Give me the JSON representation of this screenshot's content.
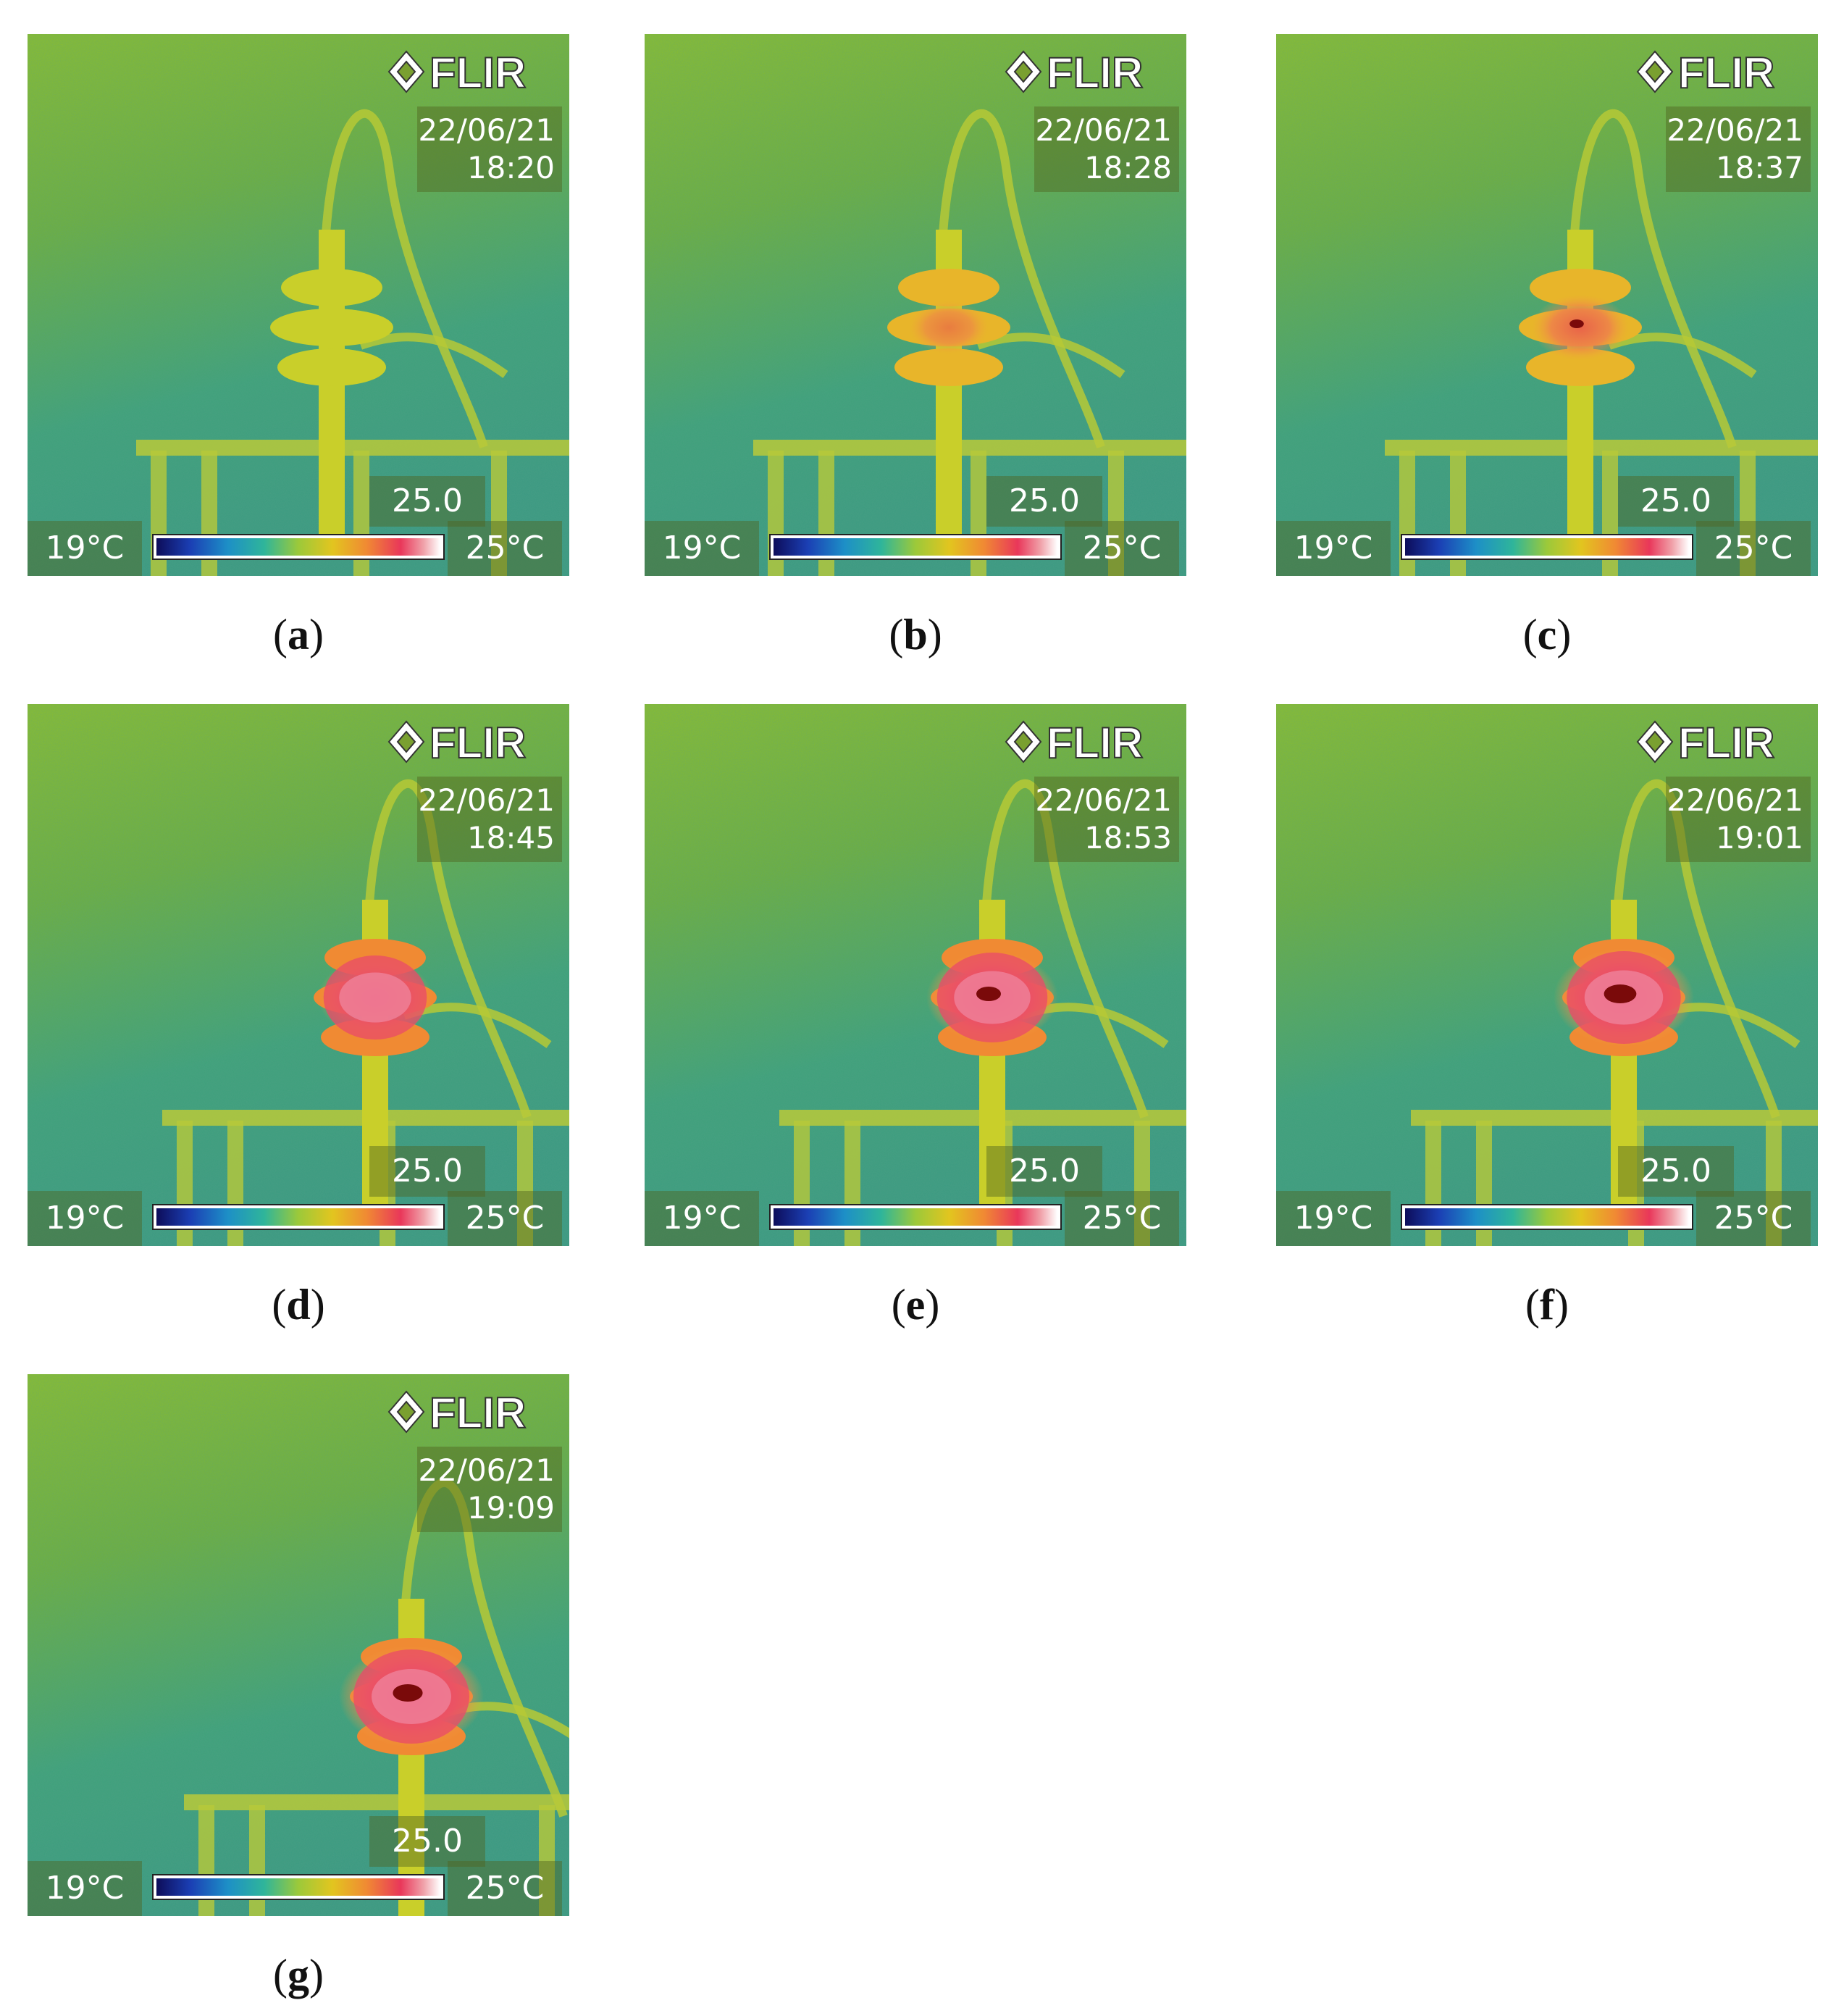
{
  "panels": [
    {
      "label": "a",
      "date": "22/06/21",
      "time": "18:20",
      "span": "25.0",
      "tmin": "19°C",
      "tmax": "25°C",
      "heat": 0.0,
      "hotspot": 0.0
    },
    {
      "label": "b",
      "date": "22/06/21",
      "time": "18:28",
      "span": "25.0",
      "tmin": "19°C",
      "tmax": "25°C",
      "heat": 0.25,
      "hotspot": 0.0
    },
    {
      "label": "c",
      "date": "22/06/21",
      "time": "18:37",
      "span": "25.0",
      "tmin": "19°C",
      "tmax": "25°C",
      "heat": 0.45,
      "hotspot": 0.1
    },
    {
      "label": "d",
      "date": "22/06/21",
      "time": "18:45",
      "span": "25.0",
      "tmin": "19°C",
      "tmax": "25°C",
      "heat": 0.65,
      "hotspot": 0.0
    },
    {
      "label": "e",
      "date": "22/06/21",
      "time": "18:53",
      "span": "25.0",
      "tmin": "19°C",
      "tmax": "25°C",
      "heat": 0.85,
      "hotspot": 0.5
    },
    {
      "label": "f",
      "date": "22/06/21",
      "time": "19:01",
      "span": "25.0",
      "tmin": "19°C",
      "tmax": "25°C",
      "heat": 0.95,
      "hotspot": 0.8
    },
    {
      "label": "g",
      "date": "22/06/21",
      "time": "19:09",
      "span": "25.0",
      "tmin": "19°C",
      "tmax": "25°C",
      "heat": 1.0,
      "hotspot": 0.7
    }
  ],
  "logo_text": "FLIR",
  "colors": {
    "background_green": "#7db534",
    "teal": "#2fa58c",
    "hot_red": "#e9375a",
    "hotspot_dark": "#7a0a0a"
  }
}
